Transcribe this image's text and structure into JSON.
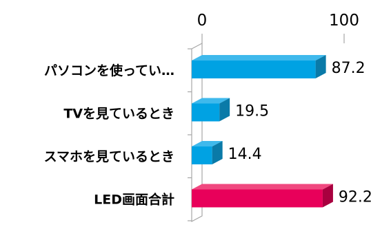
{
  "chart_data": {
    "type": "bar",
    "orientation": "horizontal",
    "style": "3d",
    "categories": [
      "パソコンを使ってい…",
      "TVを見ているとき",
      "スマホを見ているとき",
      "LED画面合計"
    ],
    "values": [
      87.2,
      19.5,
      14.4,
      92.2
    ],
    "value_labels": [
      "87.2",
      "19.5",
      "14.4",
      "92.2"
    ],
    "xlim": [
      0,
      100
    ],
    "x_ticks": [
      "0",
      "100"
    ],
    "title": "",
    "xlabel": "",
    "ylabel": "",
    "grid": false,
    "legend": "none",
    "bar_colors": [
      "#00a2e3",
      "#00a2e3",
      "#00a2e3",
      "#e8005a"
    ],
    "bar_top_colors": [
      "#3fb9ec",
      "#3fb9ec",
      "#3fb9ec",
      "#f0487f"
    ],
    "bar_side_colors": [
      "#0a7aa8",
      "#0a7aa8",
      "#0a7aa8",
      "#a8003f"
    ],
    "axis_color": "#a6a6a6",
    "wall_color": "#d9d9d9"
  }
}
